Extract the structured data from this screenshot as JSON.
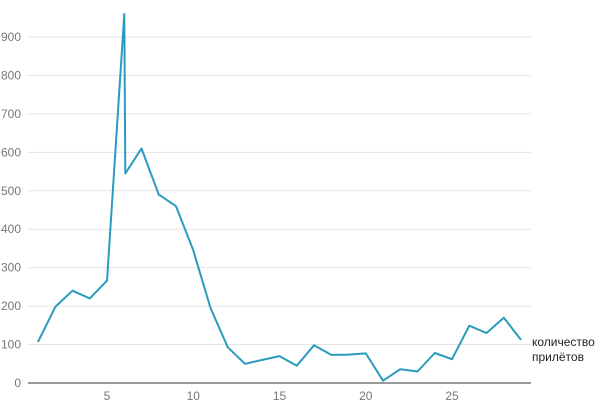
{
  "chart_data": {
    "type": "line",
    "title": "",
    "xlabel": "",
    "ylabel": "",
    "xlim": [
      1,
      29
    ],
    "ylim": [
      0,
      960
    ],
    "x_ticks": [
      5,
      10,
      15,
      20,
      25
    ],
    "y_ticks": [
      0,
      100,
      200,
      300,
      400,
      500,
      600,
      700,
      800,
      900
    ],
    "grid": true,
    "legend_placement": "right",
    "series": [
      {
        "name": "количество прилётов",
        "color": "#2a9bbd",
        "x": [
          1,
          2,
          3,
          4,
          5,
          6,
          6,
          7,
          8,
          9,
          10,
          11,
          12,
          13,
          14,
          15,
          16,
          17,
          18,
          19,
          20,
          21,
          22,
          23,
          24,
          25,
          26,
          27,
          28,
          29
        ],
        "values": [
          107,
          198,
          240,
          220,
          266,
          960,
          545,
          610,
          490,
          460,
          345,
          195,
          93,
          50,
          60,
          70,
          45,
          98,
          73,
          74,
          77,
          6,
          36,
          30,
          78,
          62,
          149,
          130,
          170,
          112
        ]
      }
    ],
    "legend_lines": [
      "количество",
      "прилётов"
    ]
  }
}
